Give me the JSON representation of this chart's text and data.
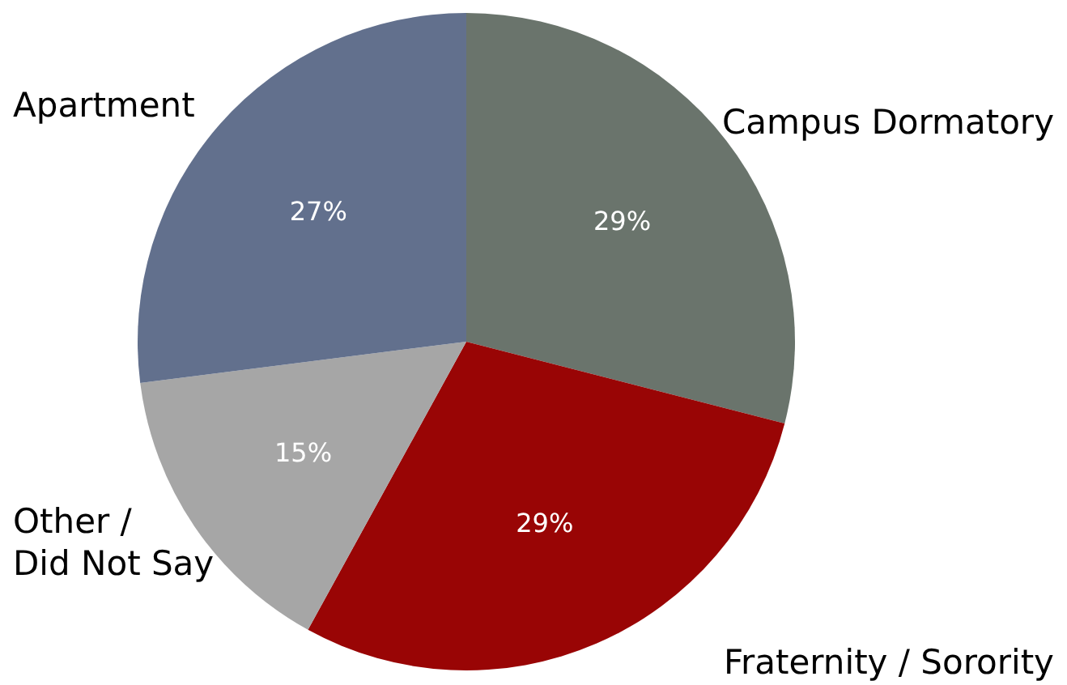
{
  "chart_data": {
    "type": "pie",
    "categories": [
      "Campus Dormatory",
      "Fraternity / Sorority",
      "Other /\nDid Not Say",
      "Apartment"
    ],
    "values": [
      29,
      29,
      15,
      27
    ],
    "colors": [
      "#6a746c",
      "#990505",
      "#a6a6a6",
      "#62708d"
    ],
    "value_labels": [
      "29%",
      "29%",
      "15%",
      "27%"
    ]
  }
}
